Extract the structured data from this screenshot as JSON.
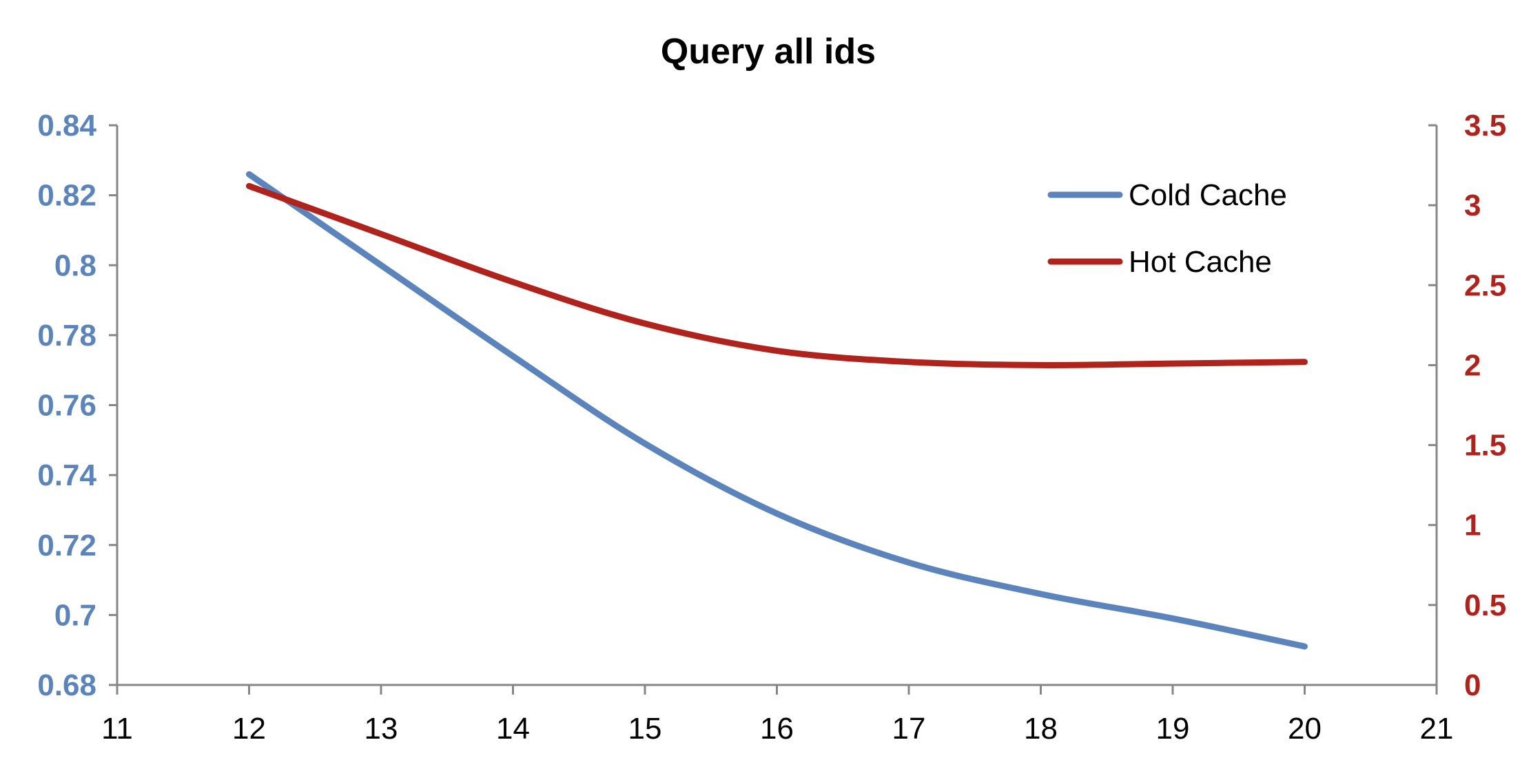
{
  "chart_data": {
    "type": "line",
    "title": "Query all ids",
    "xlabel": "",
    "xlim": [
      11,
      21
    ],
    "x_ticks": [
      "11",
      "12",
      "13",
      "14",
      "15",
      "16",
      "17",
      "18",
      "19",
      "20",
      "21"
    ],
    "y_left": {
      "label": "",
      "range": [
        0.68,
        0.84
      ],
      "ticks": [
        "0.84",
        "0.82",
        "0.8",
        "0.78",
        "0.76",
        "0.74",
        "0.72",
        "0.7",
        "0.68"
      ],
      "color": "#5B84BC"
    },
    "y_right": {
      "label": "",
      "range": [
        0,
        3.5
      ],
      "ticks": [
        "3.5",
        "3",
        "2.5",
        "2",
        "1.5",
        "1",
        "0.5",
        "0"
      ],
      "color": "#B0231C"
    },
    "smooth": true,
    "grid": false,
    "legend": "top-right",
    "series": [
      {
        "name": "Cold Cache",
        "axis": "left",
        "color": "#5B84BC",
        "x": [
          12,
          13,
          14,
          15,
          16,
          17,
          18,
          19,
          20
        ],
        "values": [
          0.826,
          0.8,
          0.774,
          0.749,
          0.729,
          0.715,
          0.706,
          0.699,
          0.691
        ]
      },
      {
        "name": "Hot Cache",
        "axis": "right",
        "color": "#B0231C",
        "x": [
          12,
          13,
          14,
          15,
          16,
          17,
          18,
          19,
          20
        ],
        "values": [
          3.12,
          2.82,
          2.52,
          2.26,
          2.09,
          2.02,
          2.0,
          2.01,
          2.02
        ]
      }
    ]
  }
}
